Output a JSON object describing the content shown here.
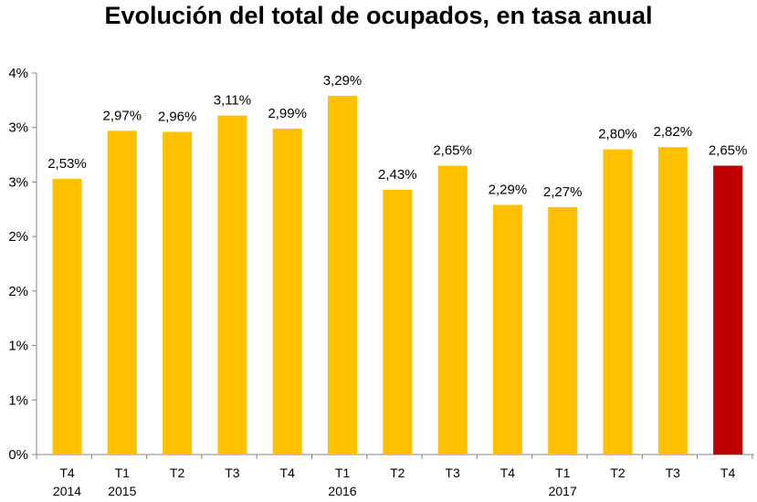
{
  "chart_data": {
    "type": "bar",
    "title": "Evolución del total de ocupados, en tasa anual",
    "xlabel": "",
    "ylabel": "",
    "y_tick_labels": [
      "0%",
      "1%",
      "1%",
      "2%",
      "2%",
      "3%",
      "3%",
      "4%"
    ],
    "ylim": [
      0,
      3.5
    ],
    "grid": false,
    "legend": "none",
    "categories": [
      {
        "quarter": "T4",
        "year": "2014"
      },
      {
        "quarter": "T1",
        "year": "2015"
      },
      {
        "quarter": "T2",
        "year": ""
      },
      {
        "quarter": "T3",
        "year": ""
      },
      {
        "quarter": "T4",
        "year": ""
      },
      {
        "quarter": "T1",
        "year": "2016"
      },
      {
        "quarter": "T2",
        "year": ""
      },
      {
        "quarter": "T3",
        "year": ""
      },
      {
        "quarter": "T4",
        "year": ""
      },
      {
        "quarter": "T1",
        "year": "2017"
      },
      {
        "quarter": "T2",
        "year": ""
      },
      {
        "quarter": "T3",
        "year": ""
      },
      {
        "quarter": "T4",
        "year": ""
      }
    ],
    "values": [
      2.53,
      2.97,
      2.96,
      3.11,
      2.99,
      3.29,
      2.43,
      2.65,
      2.29,
      2.27,
      2.8,
      2.82,
      2.65
    ],
    "data_labels": [
      "2,53%",
      "2,97%",
      "2,96%",
      "3,11%",
      "2,99%",
      "3,29%",
      "2,43%",
      "2,65%",
      "2,29%",
      "2,27%",
      "2,80%",
      "2,82%",
      "2,65%"
    ],
    "colors": {
      "bar": "#FFC000",
      "highlight_bar": "#C00000",
      "axis": "#868686"
    },
    "highlight_index": 12
  }
}
